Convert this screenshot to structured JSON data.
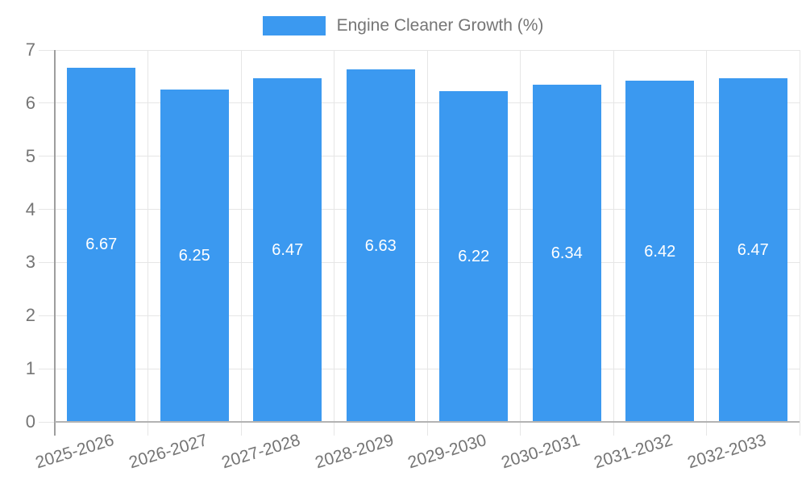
{
  "legend": {
    "label": "Engine Cleaner Growth (%)"
  },
  "chart_data": {
    "type": "bar",
    "title": "Engine Cleaner Growth (%)",
    "series_name": "Engine Cleaner Growth (%)",
    "categories": [
      "2025-2026",
      "2026-2027",
      "2027-2028",
      "2028-2029",
      "2029-2030",
      "2030-2031",
      "2031-2032",
      "2032-2033"
    ],
    "values": [
      6.67,
      6.25,
      6.47,
      6.63,
      6.22,
      6.34,
      6.42,
      6.47
    ],
    "value_labels": [
      "6.67",
      "6.25",
      "6.47",
      "6.63",
      "6.22",
      "6.34",
      "6.42",
      "6.47"
    ],
    "xlabel": "",
    "ylabel": "",
    "ylim": [
      0,
      7
    ],
    "y_ticks": [
      0,
      1,
      2,
      3,
      4,
      5,
      6,
      7
    ],
    "grid": true,
    "legend_position": "top-center",
    "colors": {
      "bar": "#3b99f0",
      "bar_value_text": "#ffffff",
      "axis_text": "#757575",
      "gridline": "#e6e6e6",
      "y_axis_line": "#9e9e9e",
      "x_axis_line": "#b3b3b3"
    }
  }
}
